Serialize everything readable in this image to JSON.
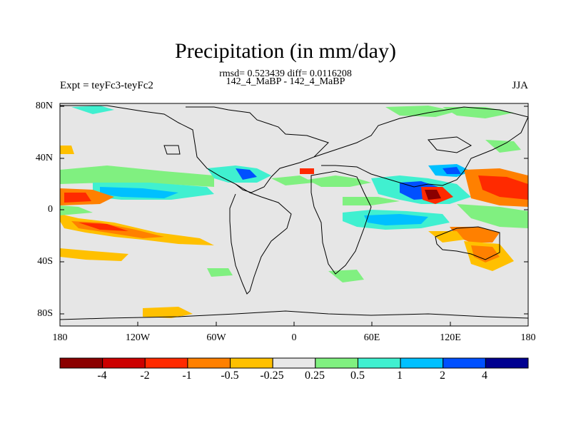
{
  "header": {
    "title": "Precipitation (in mm/day)",
    "stats": "rmsd= 0.523439 diff= 0.0116208",
    "subtitle": "142_4_MaBP - 142_4_MaBP",
    "left_label": "Expt = teyFc3-teyFc2",
    "right_label": "JJA"
  },
  "axes": {
    "y_ticks": [
      "80N",
      "40N",
      "0",
      "40S",
      "80S"
    ],
    "x_ticks": [
      "180",
      "120W",
      "60W",
      "0",
      "60E",
      "120E",
      "180"
    ]
  },
  "colorbar": {
    "labels": [
      "-4",
      "-2",
      "-1",
      "-0.5",
      "-0.25",
      "0.25",
      "0.5",
      "1",
      "2",
      "4"
    ],
    "colors": [
      "#8b0000",
      "#cc0000",
      "#ff2a00",
      "#ff8000",
      "#ffc000",
      "#e8e8e8",
      "#80f080",
      "#40f0d0",
      "#00c0ff",
      "#0050ff",
      "#000090"
    ]
  },
  "colors": {
    "land_fill": "#e6e6e6",
    "coastline": "#000000"
  }
}
